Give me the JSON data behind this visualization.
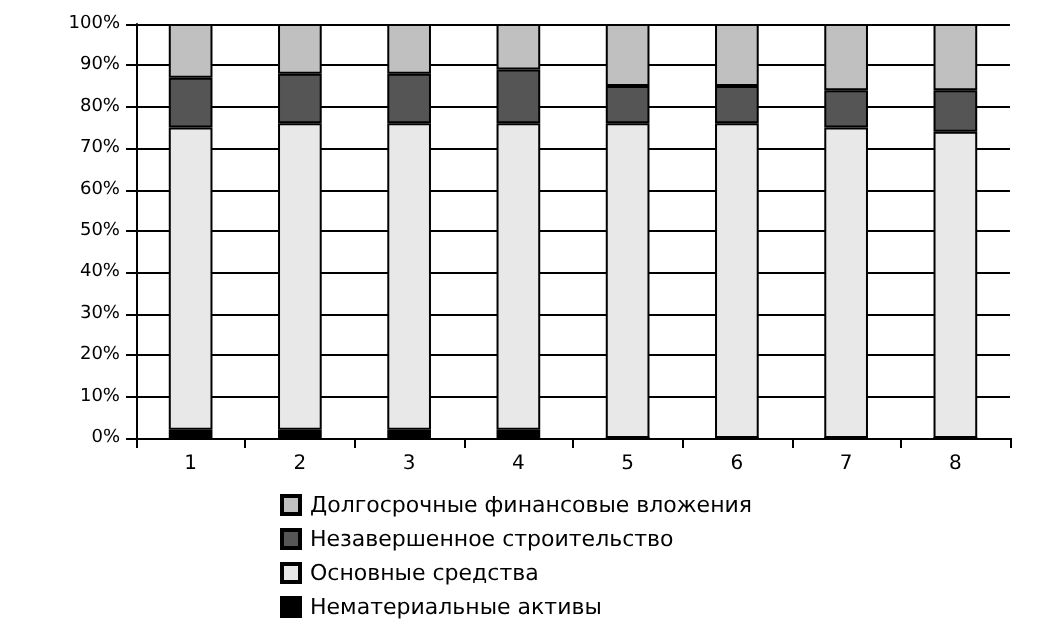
{
  "chart_data": {
    "type": "bar",
    "stacked": true,
    "categories": [
      "1",
      "2",
      "3",
      "4",
      "5",
      "6",
      "7",
      "8"
    ],
    "series": [
      {
        "name": "Нематериальные активы",
        "color": "#000000",
        "values": [
          2,
          2,
          2,
          2,
          0,
          0,
          0,
          0
        ]
      },
      {
        "name": "Основные средства",
        "color": "#e8e8e8",
        "values": [
          73,
          74,
          74,
          74,
          76,
          76,
          75,
          74
        ]
      },
      {
        "name": "Незавершенное строительство",
        "color": "#555555",
        "values": [
          12,
          12,
          12,
          13,
          9,
          9,
          9,
          10
        ]
      },
      {
        "name": "Долгосрочные финансовые вложения",
        "color": "#c0c0c0",
        "values": [
          13,
          12,
          12,
          11,
          15,
          15,
          16,
          16
        ]
      }
    ],
    "ylim": [
      0,
      100
    ],
    "yticks": [
      {
        "value": 0,
        "label": "0%"
      },
      {
        "value": 10,
        "label": "10%"
      },
      {
        "value": 20,
        "label": "20%"
      },
      {
        "value": 30,
        "label": "30%"
      },
      {
        "value": 40,
        "label": "40%"
      },
      {
        "value": 50,
        "label": "50%"
      },
      {
        "value": 60,
        "label": "60%"
      },
      {
        "value": 70,
        "label": "70%"
      },
      {
        "value": 80,
        "label": "80%"
      },
      {
        "value": 90,
        "label": "90%"
      },
      {
        "value": 100,
        "label": "100%"
      }
    ],
    "grid": "y",
    "legend": "bottom"
  }
}
